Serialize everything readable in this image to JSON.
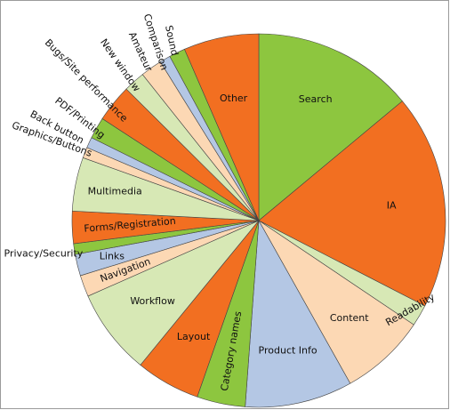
{
  "chart_data": {
    "type": "pie",
    "title": "",
    "start": "12 o'clock, clockwise",
    "slices": [
      {
        "label": "Search",
        "value": 15.0,
        "color": "#8dc63f"
      },
      {
        "label": "IA",
        "value": 20.0,
        "color": "#f26f21"
      },
      {
        "label": "Readability",
        "value": 2.0,
        "color": "#d7e8b5"
      },
      {
        "label": "Content",
        "value": 8.0,
        "color": "#fcd8b4"
      },
      {
        "label": "Product Info",
        "value": 10.0,
        "color": "#b4c7e4"
      },
      {
        "label": "Category names",
        "value": 4.5,
        "color": "#8dc63f"
      },
      {
        "label": "Layout",
        "value": 6.0,
        "color": "#f26f21"
      },
      {
        "label": "Workflow",
        "value": 8.0,
        "color": "#d7e8b5"
      },
      {
        "label": "Navigation",
        "value": 2.0,
        "color": "#fcd8b4"
      },
      {
        "label": "Links",
        "value": 2.0,
        "color": "#b4c7e4"
      },
      {
        "label": "Privacy/Security",
        "value": 1.0,
        "color": "#8dc63f"
      },
      {
        "label": "Forms/Registration",
        "value": 3.0,
        "color": "#f26f21"
      },
      {
        "label": "Multimedia",
        "value": 5.0,
        "color": "#d7e8b5"
      },
      {
        "label": "Graphics/Buttons",
        "value": 1.0,
        "color": "#fcd8b4"
      },
      {
        "label": "Back button",
        "value": 1.0,
        "color": "#b4c7e4"
      },
      {
        "label": "PDF/Printing",
        "value": 2.0,
        "color": "#8dc63f"
      },
      {
        "label": "Bugs/Site performance",
        "value": 3.5,
        "color": "#f26f21"
      },
      {
        "label": "New window",
        "value": 2.0,
        "color": "#d7e8b5"
      },
      {
        "label": "Amateur",
        "value": 2.0,
        "color": "#fcd8b4"
      },
      {
        "label": "Comparison",
        "value": 1.0,
        "color": "#b4c7e4"
      },
      {
        "label": "Sound",
        "value": 1.5,
        "color": "#8dc63f"
      },
      {
        "label": "Other",
        "value": 7.0,
        "color": "#f26f21"
      }
    ]
  }
}
